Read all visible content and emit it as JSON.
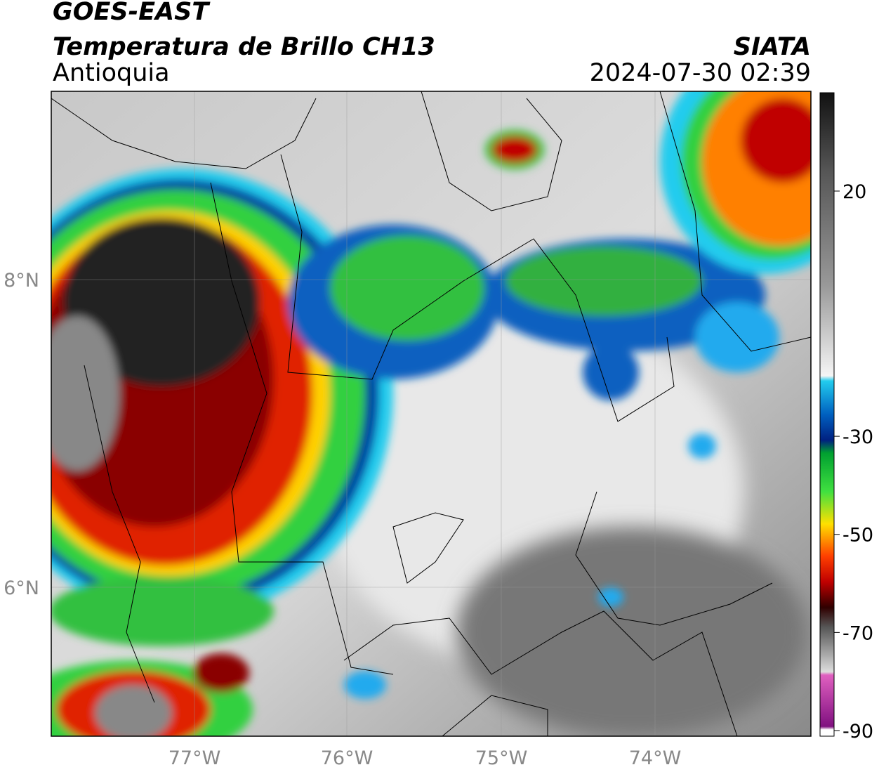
{
  "header": {
    "title": "GOES-EAST",
    "subtitle": "Temperatura de Brillo CH13",
    "region": "Antioquia",
    "source": "SIATA",
    "timestamp": "2024-07-30 02:39"
  },
  "map": {
    "lat_labels": [
      "8°N",
      "6°N"
    ],
    "lon_labels": [
      "77°W",
      "76°W",
      "75°W",
      "74°W"
    ]
  },
  "colorbar": {
    "ticks": [
      20,
      -30,
      -50,
      -70,
      -90
    ]
  }
}
